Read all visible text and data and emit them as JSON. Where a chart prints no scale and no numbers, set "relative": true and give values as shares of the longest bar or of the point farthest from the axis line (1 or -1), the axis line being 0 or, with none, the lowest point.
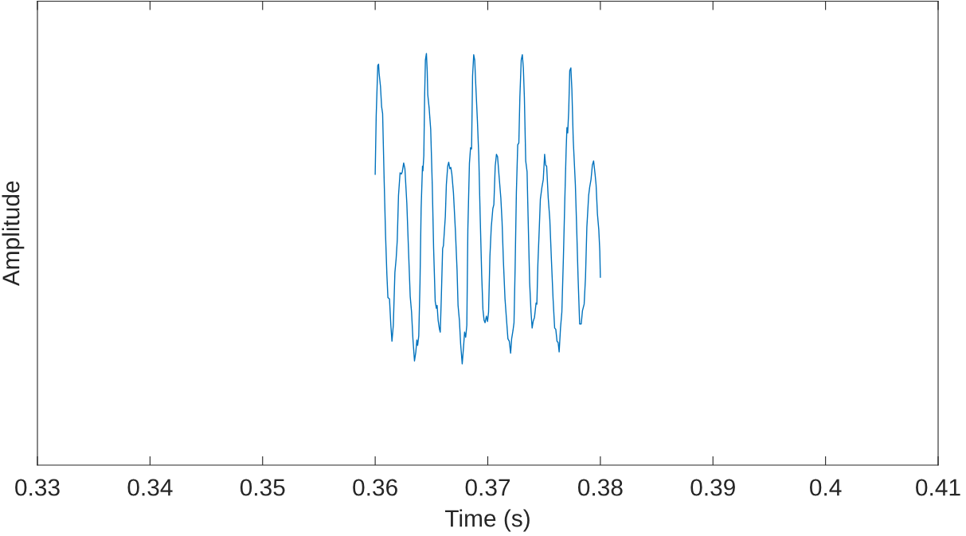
{
  "chart_data": {
    "type": "line",
    "xlabel": "Time (s)",
    "ylabel": "Amplitude",
    "relative": true,
    "tick_labels": "x",
    "color": "#0072bd",
    "xlim": [
      0.33,
      0.41
    ],
    "xticks": [
      0.33,
      0.34,
      0.35,
      0.36,
      0.37,
      0.38,
      0.39,
      0.4,
      0.41
    ],
    "x": [
      0.36,
      0.36009,
      0.36023,
      0.3603,
      0.36035,
      0.36047,
      0.36057,
      0.36066,
      0.3608,
      0.36092,
      0.36104,
      0.36113,
      0.36127,
      0.36139,
      0.36149,
      0.36161,
      0.36175,
      0.36186,
      0.36196,
      0.36207,
      0.36221,
      0.36233,
      0.36241,
      0.36253,
      0.36264,
      0.36281,
      0.36297,
      0.36311,
      0.36323,
      0.36335,
      0.36349,
      0.36361,
      0.3637,
      0.36377,
      0.36387,
      0.36398,
      0.36408,
      0.3642,
      0.36424,
      0.36432,
      0.36439,
      0.36446,
      0.36455,
      0.36462,
      0.36467,
      0.36479,
      0.36493,
      0.36507,
      0.36519,
      0.36533,
      0.36543,
      0.3655,
      0.36559,
      0.36571,
      0.36578,
      0.36587,
      0.36599,
      0.36606,
      0.36623,
      0.36632,
      0.36644,
      0.36653,
      0.36663,
      0.36672,
      0.36681,
      0.36695,
      0.36712,
      0.36727,
      0.36736,
      0.36748,
      0.36759,
      0.36773,
      0.36785,
      0.36794,
      0.36804,
      0.36814,
      0.36823,
      0.36837,
      0.36847,
      0.36856,
      0.36865,
      0.36875,
      0.36884,
      0.36894,
      0.36908,
      0.3692,
      0.36932,
      0.36946,
      0.36957,
      0.36967,
      0.36976,
      0.36988,
      0.36998,
      0.37007,
      0.37019,
      0.37031,
      0.37045,
      0.37054,
      0.37066,
      0.37077,
      0.37087,
      0.37101,
      0.37116,
      0.37127,
      0.37139,
      0.37153,
      0.37165,
      0.37179,
      0.37191,
      0.37203,
      0.37212,
      0.37224,
      0.37233,
      0.37243,
      0.37254,
      0.37266,
      0.37276,
      0.37285,
      0.37297,
      0.37307,
      0.37316,
      0.37325,
      0.37337,
      0.37349,
      0.37358,
      0.37372,
      0.37384,
      0.37394,
      0.37403,
      0.37415,
      0.37429,
      0.37436,
      0.37445,
      0.37457,
      0.37467,
      0.37481,
      0.37493,
      0.37505,
      0.37514,
      0.37523,
      0.37537,
      0.37551,
      0.37566,
      0.3758,
      0.37594,
      0.37604,
      0.37615,
      0.37625,
      0.37634,
      0.37646,
      0.37658,
      0.37672,
      0.37684,
      0.37696,
      0.37703,
      0.3771,
      0.37719,
      0.37728,
      0.37738,
      0.37747,
      0.37759,
      0.37778,
      0.3779,
      0.37802,
      0.37816,
      0.3783,
      0.37841,
      0.37856,
      0.37868,
      0.3788,
      0.37896,
      0.37905,
      0.37917,
      0.37929,
      0.3794,
      0.37953,
      0.37962,
      0.37974,
      0.37986,
      0.37995,
      0.38
    ],
    "values": [
      0.706,
      0.849,
      0.971,
      0.974,
      0.952,
      0.92,
      0.871,
      0.854,
      0.688,
      0.559,
      0.462,
      0.407,
      0.404,
      0.34,
      0.301,
      0.34,
      0.468,
      0.501,
      0.546,
      0.655,
      0.71,
      0.707,
      0.713,
      0.734,
      0.72,
      0.636,
      0.514,
      0.41,
      0.372,
      0.307,
      0.253,
      0.275,
      0.304,
      0.291,
      0.314,
      0.443,
      0.623,
      0.726,
      0.715,
      0.752,
      0.894,
      0.984,
      1.0,
      0.958,
      0.9,
      0.868,
      0.816,
      0.681,
      0.526,
      0.398,
      0.381,
      0.388,
      0.352,
      0.33,
      0.323,
      0.404,
      0.526,
      0.533,
      0.604,
      0.681,
      0.726,
      0.736,
      0.72,
      0.723,
      0.707,
      0.662,
      0.572,
      0.475,
      0.388,
      0.352,
      0.294,
      0.246,
      0.288,
      0.323,
      0.311,
      0.34,
      0.572,
      0.733,
      0.771,
      0.768,
      0.945,
      0.997,
      0.984,
      0.92,
      0.836,
      0.752,
      0.61,
      0.462,
      0.378,
      0.352,
      0.346,
      0.362,
      0.349,
      0.372,
      0.507,
      0.578,
      0.623,
      0.633,
      0.726,
      0.755,
      0.749,
      0.7,
      0.649,
      0.591,
      0.494,
      0.404,
      0.359,
      0.307,
      0.301,
      0.272,
      0.307,
      0.327,
      0.346,
      0.481,
      0.662,
      0.778,
      0.783,
      0.894,
      0.984,
      0.997,
      0.965,
      0.894,
      0.739,
      0.713,
      0.604,
      0.443,
      0.372,
      0.333,
      0.349,
      0.359,
      0.394,
      0.391,
      0.488,
      0.572,
      0.646,
      0.675,
      0.694,
      0.755,
      0.729,
      0.726,
      0.649,
      0.597,
      0.494,
      0.404,
      0.333,
      0.33,
      0.301,
      0.298,
      0.275,
      0.333,
      0.372,
      0.507,
      0.642,
      0.765,
      0.82,
      0.807,
      0.862,
      0.958,
      0.965,
      0.913,
      0.791,
      0.681,
      0.572,
      0.456,
      0.343,
      0.343,
      0.375,
      0.391,
      0.456,
      0.578,
      0.655,
      0.675,
      0.694,
      0.729,
      0.739,
      0.707,
      0.681,
      0.61,
      0.572,
      0.52,
      0.456
    ]
  }
}
